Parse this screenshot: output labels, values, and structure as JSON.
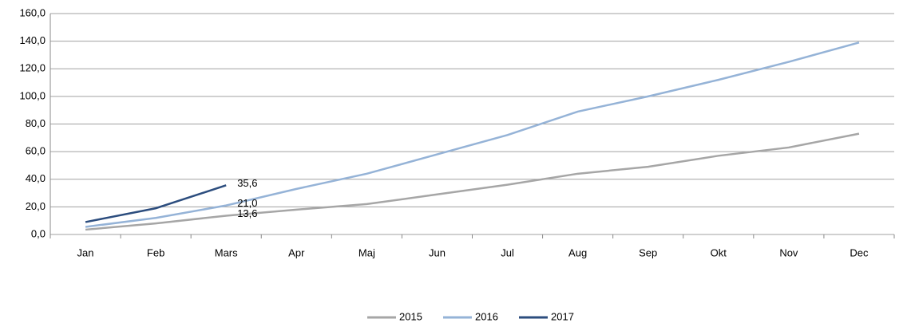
{
  "chart_data": {
    "type": "line",
    "categories": [
      "Jan",
      "Feb",
      "Mars",
      "Apr",
      "Maj",
      "Jun",
      "Jul",
      "Aug",
      "Sep",
      "Okt",
      "Nov",
      "Dec"
    ],
    "series": [
      {
        "name": "2015",
        "color": "#a6a6a6",
        "values": [
          3.5,
          8,
          13.6,
          18,
          22,
          29,
          36,
          44,
          49,
          57,
          63,
          73
        ],
        "value_labels": [
          null,
          null,
          "13,6",
          null,
          null,
          null,
          null,
          null,
          null,
          null,
          null,
          null
        ]
      },
      {
        "name": "2016",
        "color": "#95b3d7",
        "values": [
          5.5,
          12,
          21.0,
          33,
          44,
          58,
          72,
          89,
          100,
          112,
          125,
          139
        ],
        "value_labels": [
          null,
          null,
          "21,0",
          null,
          null,
          null,
          null,
          null,
          null,
          null,
          null,
          null
        ]
      },
      {
        "name": "2017",
        "color": "#2c4d7e",
        "values": [
          9,
          19,
          35.6,
          null,
          null,
          null,
          null,
          null,
          null,
          null,
          null,
          null
        ],
        "value_labels": [
          null,
          null,
          "35,6",
          null,
          null,
          null,
          null,
          null,
          null,
          null,
          null,
          null
        ]
      }
    ],
    "ylim": [
      0,
      160
    ],
    "yticks": [
      {
        "value": 0,
        "label": "0,0"
      },
      {
        "value": 20,
        "label": "20,0"
      },
      {
        "value": 40,
        "label": "40,0"
      },
      {
        "value": 60,
        "label": "60,0"
      },
      {
        "value": 80,
        "label": "80,0"
      },
      {
        "value": 100,
        "label": "100,0"
      },
      {
        "value": 120,
        "label": "120,0"
      },
      {
        "value": 140,
        "label": "140,0"
      },
      {
        "value": 160,
        "label": "160,0"
      }
    ],
    "grid": true
  }
}
